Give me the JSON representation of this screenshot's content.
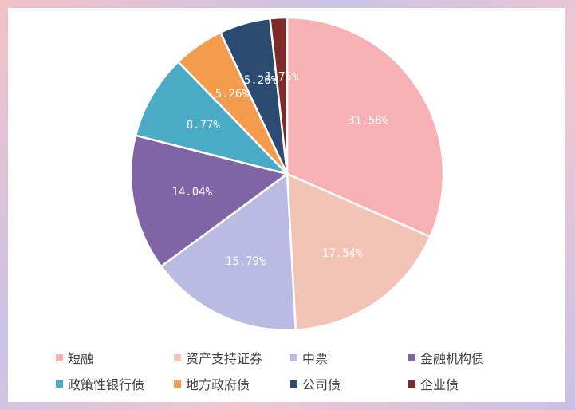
{
  "chart_data": {
    "type": "pie",
    "categories": [
      "短融",
      "资产支持证券",
      "中票",
      "金融机构债",
      "政策性银行债",
      "地方政府债",
      "公司债",
      "企业债"
    ],
    "values": [
      31.58,
      17.54,
      15.79,
      14.04,
      8.77,
      5.26,
      5.26,
      1.75
    ],
    "labels": [
      "31.58%",
      "17.54%",
      "15.79%",
      "14.04%",
      "8.77%",
      "5.26%",
      "5.26%",
      "1.75%"
    ],
    "colors": [
      "#f7b0b3",
      "#f3c3b5",
      "#babbe3",
      "#7f64a6",
      "#4aabc6",
      "#f59b4d",
      "#2b4b73",
      "#7e2a2a"
    ],
    "legend_position": "bottom",
    "start_angle": "12 o'clock, clockwise"
  }
}
